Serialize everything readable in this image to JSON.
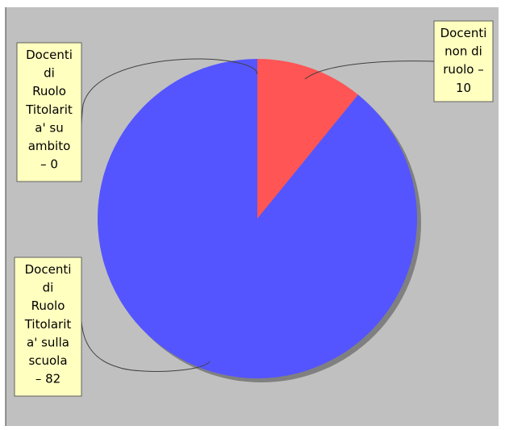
{
  "chart_data": {
    "type": "pie",
    "slices": [
      {
        "label_lines": [
          "Docenti",
          "non di",
          "ruolo –",
          "10"
        ],
        "category": "Docenti non di ruolo",
        "value": 10,
        "color": "#ff5555"
      },
      {
        "label_lines": [
          "Docenti",
          "di",
          "Ruolo",
          "Titolarit",
          "a' sulla",
          "scuola",
          "– 82"
        ],
        "category": "Docenti di Ruolo Titolarità sulla scuola",
        "value": 82,
        "color": "#5555ff"
      },
      {
        "label_lines": [
          "Docenti",
          "di",
          "Ruolo",
          "Titolarit",
          "a' su",
          "ambito",
          "– 0"
        ],
        "category": "Docenti di Ruolo Titolarità su ambito",
        "value": 0,
        "color": "#55ff55"
      }
    ],
    "background_color": "#c0c0c0",
    "label_box_color": "#ffffc0",
    "legend": "none"
  }
}
